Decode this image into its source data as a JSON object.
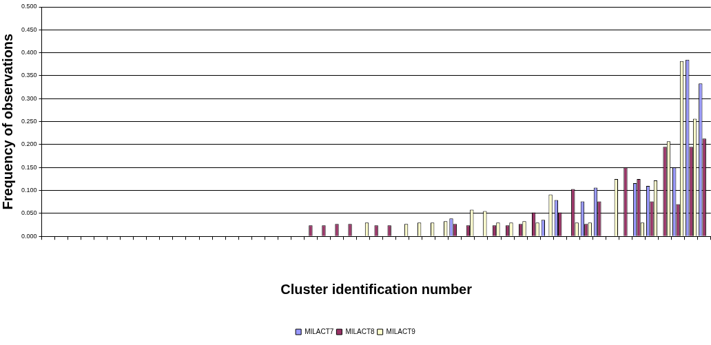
{
  "chart_data": {
    "type": "bar",
    "xlabel": "Cluster identification number",
    "ylabel": "Frequency of observations",
    "categories": [
      null,
      null,
      null,
      null,
      null,
      null,
      null,
      null,
      null,
      null,
      null,
      null,
      null,
      null,
      null,
      null,
      null,
      null,
      null,
      null,
      null,
      null,
      null,
      null,
      null,
      null,
      null,
      null,
      null,
      null,
      null,
      null,
      null,
      null,
      null,
      null,
      null,
      null,
      null,
      null,
      null,
      null,
      null,
      null,
      null,
      null,
      null,
      null,
      null,
      null,
      null
    ],
    "series": [
      {
        "name": "MILACT7",
        "color": "#9999ff",
        "values": [
          null,
          null,
          null,
          null,
          null,
          null,
          null,
          null,
          null,
          null,
          null,
          null,
          null,
          null,
          null,
          null,
          null,
          null,
          null,
          null,
          null,
          null,
          null,
          null,
          null,
          null,
          null,
          null,
          null,
          null,
          null,
          0.039,
          null,
          null,
          null,
          null,
          null,
          null,
          0.036,
          0.079,
          null,
          0.076,
          0.106,
          null,
          null,
          0.116,
          0.11,
          null,
          0.15,
          0.385,
          0.333
        ]
      },
      {
        "name": "MILACT8",
        "color": "#993366",
        "values": [
          null,
          null,
          null,
          null,
          null,
          null,
          null,
          null,
          null,
          null,
          null,
          null,
          null,
          null,
          null,
          null,
          null,
          null,
          null,
          null,
          0.024,
          0.024,
          0.027,
          0.027,
          null,
          0.024,
          0.024,
          null,
          null,
          null,
          null,
          0.027,
          0.024,
          null,
          0.024,
          0.024,
          0.027,
          0.052,
          null,
          0.052,
          0.103,
          0.027,
          0.076,
          null,
          0.15,
          0.125,
          0.076,
          0.195,
          0.07,
          0.195,
          0.213
        ]
      },
      {
        "name": "MILACT9",
        "color": "#ffffcc",
        "values": [
          null,
          null,
          null,
          null,
          null,
          null,
          null,
          null,
          null,
          null,
          null,
          null,
          null,
          null,
          null,
          null,
          null,
          null,
          null,
          null,
          null,
          null,
          null,
          null,
          0.03,
          null,
          null,
          0.027,
          0.03,
          0.03,
          0.033,
          null,
          0.058,
          0.055,
          0.03,
          0.03,
          0.033,
          0.03,
          0.091,
          null,
          0.03,
          0.03,
          null,
          0.125,
          null,
          0.03,
          0.122,
          0.207,
          0.382,
          0.256,
          null
        ]
      }
    ],
    "ylim": [
      0,
      0.5
    ],
    "yticks": [
      {
        "value": 0,
        "label": "0.000"
      },
      {
        "value": 0.05,
        "label": "0.050"
      },
      {
        "value": 0.1,
        "label": "0.100"
      },
      {
        "value": 0.15,
        "label": "0.150"
      },
      {
        "value": 0.2,
        "label": "0.200"
      },
      {
        "value": 0.25,
        "label": "0.250"
      },
      {
        "value": 0.3,
        "label": "0.300"
      },
      {
        "value": 0.35,
        "label": "0.350"
      },
      {
        "value": 0.4,
        "label": "0.400"
      },
      {
        "value": 0.45,
        "label": "0.450"
      },
      {
        "value": 0.5,
        "label": "0.500"
      }
    ],
    "grid": "y",
    "legend": "bottom"
  }
}
